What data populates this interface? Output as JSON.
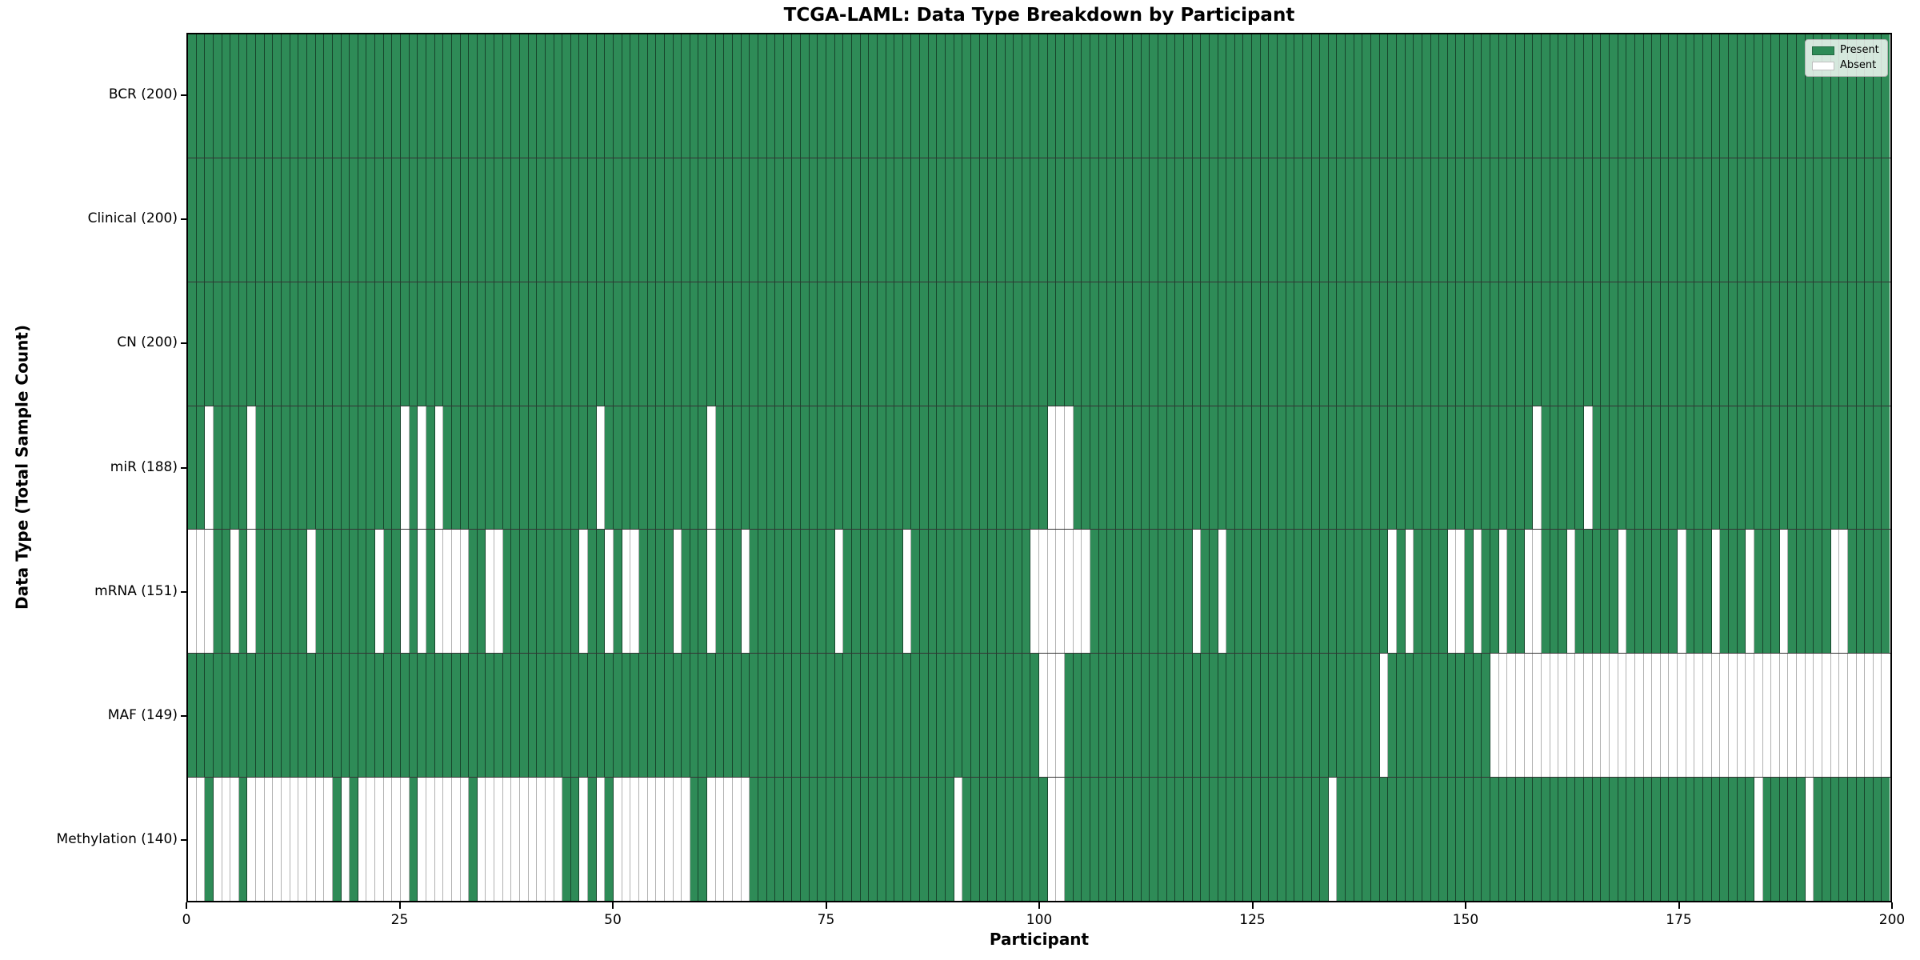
{
  "title": "TCGA-LAML: Data Type Breakdown by Participant",
  "axes": {
    "xlabel": "Participant",
    "ylabel": "Data Type (Total Sample Count)"
  },
  "colors": {
    "present": "#2E8B57",
    "absent": "#FFFFFF",
    "plot_border": "#000000"
  },
  "chart_data": {
    "type": "heatmap",
    "title": "TCGA-LAML: Data Type Breakdown by Participant",
    "xlabel": "Participant",
    "ylabel": "Data Type (Total Sample Count)",
    "x_range": [
      0,
      200
    ],
    "n_participants": 200,
    "x_ticks": [
      0,
      25,
      50,
      75,
      100,
      125,
      150,
      175,
      200
    ],
    "grid": "cell-borders",
    "legend_position": "upper right",
    "legend": [
      {
        "label": "Present",
        "color": "#2E8B57"
      },
      {
        "label": "Absent",
        "color": "#FFFFFF"
      }
    ],
    "value_encoding": "green cell = data type present for participant, white cell = absent",
    "rows": [
      {
        "label": "BCR",
        "present_count": 200,
        "ytick": "BCR (200)",
        "absent_participants": []
      },
      {
        "label": "Clinical",
        "present_count": 200,
        "ytick": "Clinical (200)",
        "absent_participants": []
      },
      {
        "label": "CN",
        "present_count": 200,
        "ytick": "CN (200)",
        "absent_participants": []
      },
      {
        "label": "miR",
        "present_count": 188,
        "ytick": "miR (188)",
        "absent_participants": [
          2,
          7,
          25,
          27,
          29,
          48,
          61,
          101,
          102,
          103,
          158,
          164
        ]
      },
      {
        "label": "mRNA",
        "present_count": 151,
        "ytick": "mRNA (151)",
        "absent_participants": [
          0,
          1,
          2,
          5,
          7,
          14,
          22,
          25,
          27,
          29,
          30,
          31,
          32,
          35,
          36,
          46,
          49,
          51,
          52,
          57,
          61,
          65,
          76,
          84,
          99,
          100,
          101,
          102,
          103,
          104,
          105,
          118,
          121,
          141,
          143,
          148,
          149,
          151,
          154,
          157,
          158,
          162,
          168,
          175,
          179,
          183,
          187,
          193,
          194
        ]
      },
      {
        "label": "MAF",
        "present_count": 149,
        "ytick": "MAF (149)",
        "absent_participants": [
          100,
          101,
          102,
          140,
          153,
          154,
          155,
          156,
          157,
          158,
          159,
          160,
          161,
          162,
          163,
          164,
          165,
          166,
          167,
          168,
          169,
          170,
          171,
          172,
          173,
          174,
          175,
          176,
          177,
          178,
          179,
          180,
          181,
          182,
          183,
          184,
          185,
          186,
          187,
          188,
          189,
          190,
          191,
          192,
          193,
          194,
          195,
          196,
          197,
          198,
          199
        ]
      },
      {
        "label": "Methylation",
        "present_count": 140,
        "ytick": "Methylation (140)",
        "absent_participants": [
          0,
          1,
          3,
          4,
          5,
          7,
          8,
          9,
          10,
          11,
          12,
          13,
          14,
          15,
          16,
          18,
          20,
          21,
          22,
          23,
          24,
          25,
          27,
          28,
          29,
          30,
          31,
          32,
          34,
          35,
          36,
          37,
          38,
          39,
          40,
          41,
          42,
          43,
          46,
          48,
          50,
          51,
          52,
          53,
          54,
          55,
          56,
          57,
          58,
          61,
          62,
          63,
          64,
          65,
          90,
          101,
          102,
          134,
          184,
          190
        ]
      }
    ]
  }
}
